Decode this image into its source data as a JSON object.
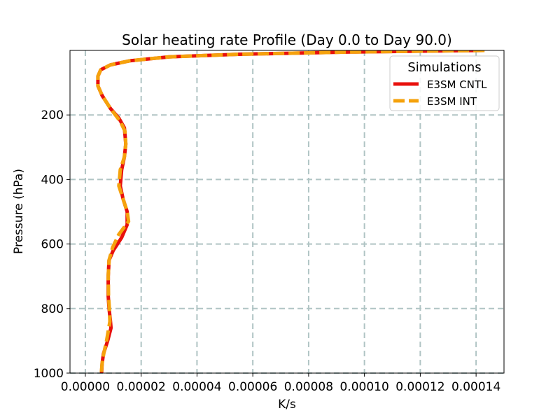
{
  "chart_data": {
    "type": "line",
    "title": "Solar heating rate Profile (Day 0.0 to Day 90.0)",
    "xlabel": "K/s",
    "ylabel": "Pressure (hPa)",
    "xlim": [
      -5.5e-06,
      0.00015
    ],
    "ylim": [
      1000,
      0
    ],
    "x_ticks": [
      0.0,
      2e-05,
      4e-05,
      6e-05,
      8e-05,
      0.0001,
      0.00012,
      0.00014
    ],
    "x_tick_labels": [
      "0.00000",
      "0.00002",
      "0.00004",
      "0.00006",
      "0.00008",
      "0.00010",
      "0.00012",
      "0.00014"
    ],
    "y_ticks": [
      200,
      400,
      600,
      800,
      1000
    ],
    "y_tick_labels": [
      "200",
      "400",
      "600",
      "800",
      "1000"
    ],
    "grid": true,
    "legend": {
      "title": "Simulations",
      "position": "top-right"
    },
    "series": [
      {
        "name": "E3SM CNTL",
        "color": "#e8100c",
        "style": "solid",
        "x": [
          0.000143,
          9.5e-05,
          5.5e-05,
          3e-05,
          1.6e-05,
          9e-06,
          5.5e-06,
          4.5e-06,
          4.5e-06,
          6e-06,
          9e-06,
          1.2e-05,
          1.4e-05,
          1.45e-05,
          1.4e-05,
          1.3e-05,
          1.25e-05,
          1.35e-05,
          1.5e-05,
          1.5e-05,
          1.3e-05,
          1e-05,
          8.5e-06,
          8.2e-06,
          8.2e-06,
          8.5e-06,
          9e-06,
          9.2e-06,
          8e-06,
          6.5e-06,
          6e-06,
          5.8e-06
        ],
        "y": [
          0,
          5,
          12,
          20,
          32,
          45,
          60,
          80,
          110,
          140,
          180,
          210,
          240,
          290,
          330,
          370,
          420,
          460,
          500,
          540,
          580,
          620,
          650,
          700,
          760,
          800,
          840,
          860,
          900,
          940,
          970,
          1000
        ]
      },
      {
        "name": "E3SM INT",
        "color": "#f5a20c",
        "style": "dashed",
        "x": [
          0.000143,
          9.5e-05,
          5.5e-05,
          3e-05,
          1.6e-05,
          9e-06,
          5.5e-06,
          4.5e-06,
          4.5e-06,
          6e-06,
          9e-06,
          1.25e-05,
          1.42e-05,
          1.45e-05,
          1.4e-05,
          1.25e-05,
          1.2e-05,
          1.35e-05,
          1.5e-05,
          1.55e-05,
          1.2e-05,
          9.8e-06,
          8.5e-06,
          8.2e-06,
          8.3e-06,
          8.6e-06,
          8.8e-06,
          8.4e-06,
          7.6e-06,
          6.6e-06,
          6e-06,
          5.7e-06
        ],
        "y": [
          0,
          5,
          12,
          20,
          32,
          45,
          60,
          80,
          110,
          140,
          180,
          220,
          250,
          290,
          330,
          370,
          420,
          460,
          500,
          530,
          570,
          610,
          650,
          700,
          760,
          800,
          840,
          860,
          900,
          940,
          970,
          1000
        ]
      }
    ]
  }
}
